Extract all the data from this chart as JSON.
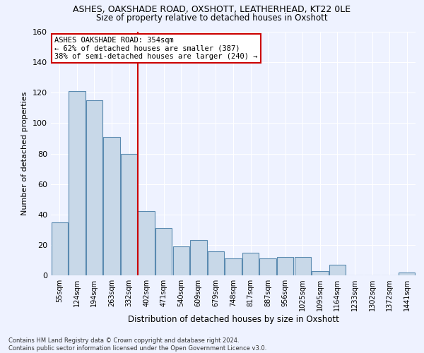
{
  "title_line1": "ASHES, OAKSHADE ROAD, OXSHOTT, LEATHERHEAD, KT22 0LE",
  "title_line2": "Size of property relative to detached houses in Oxshott",
  "xlabel": "Distribution of detached houses by size in Oxshott",
  "ylabel": "Number of detached properties",
  "categories": [
    "55sqm",
    "124sqm",
    "194sqm",
    "263sqm",
    "332sqm",
    "402sqm",
    "471sqm",
    "540sqm",
    "609sqm",
    "679sqm",
    "748sqm",
    "817sqm",
    "887sqm",
    "956sqm",
    "1025sqm",
    "1095sqm",
    "1164sqm",
    "1233sqm",
    "1302sqm",
    "1372sqm",
    "1441sqm"
  ],
  "values": [
    35,
    121,
    115,
    91,
    80,
    42,
    31,
    19,
    23,
    16,
    11,
    15,
    11,
    12,
    12,
    3,
    7,
    0,
    0,
    0,
    2
  ],
  "bar_color": "#c8d8e8",
  "bar_edge_color": "#5a8ab0",
  "vline_color": "#cc0000",
  "annotation_text": "ASHES OAKSHADE ROAD: 354sqm\n← 62% of detached houses are smaller (387)\n38% of semi-detached houses are larger (240) →",
  "annotation_box_color": "#ffffff",
  "annotation_box_edge": "#cc0000",
  "ylim": [
    0,
    160
  ],
  "yticks": [
    0,
    20,
    40,
    60,
    80,
    100,
    120,
    140,
    160
  ],
  "footnote": "Contains HM Land Registry data © Crown copyright and database right 2024.\nContains public sector information licensed under the Open Government Licence v3.0.",
  "bg_color": "#eef2ff",
  "grid_color": "#ffffff"
}
